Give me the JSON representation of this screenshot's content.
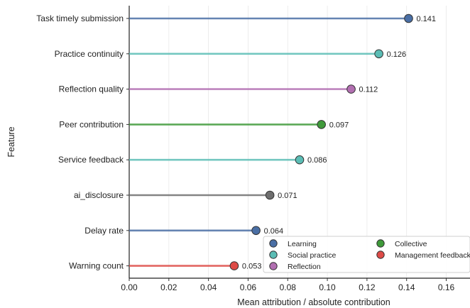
{
  "chart_data": {
    "type": "lollipop",
    "xlabel": "Mean attribution / absolute contribution",
    "ylabel": "Feature",
    "xlim": [
      0.0,
      0.172
    ],
    "xticks": [
      "0.00",
      "0.02",
      "0.04",
      "0.06",
      "0.08",
      "0.10",
      "0.12",
      "0.14",
      "0.16"
    ],
    "grid": "vertical",
    "legend_position": "bottom-right",
    "legend": [
      {
        "name": "Learning",
        "color": "#4a6fa5"
      },
      {
        "name": "Collective",
        "color": "#3f9a3a"
      },
      {
        "name": "Social practice",
        "color": "#5bbdb5"
      },
      {
        "name": "Management feedback",
        "color": "#de4b47"
      },
      {
        "name": "Reflection",
        "color": "#b26fb1"
      }
    ],
    "features": [
      {
        "label": "Task timely submission",
        "value": 0.141,
        "value_label": "0.141",
        "color": "#4a6fa5"
      },
      {
        "label": "Practice continuity",
        "value": 0.126,
        "value_label": "0.126",
        "color": "#5bbdb5"
      },
      {
        "label": "Reflection quality",
        "value": 0.112,
        "value_label": "0.112",
        "color": "#b26fb1"
      },
      {
        "label": "Peer contribution",
        "value": 0.097,
        "value_label": "0.097",
        "color": "#3f9a3a"
      },
      {
        "label": "Service feedback",
        "value": 0.086,
        "value_label": "0.086",
        "color": "#5bbdb5"
      },
      {
        "label": "ai_disclosure",
        "value": 0.071,
        "value_label": "0.071",
        "color": "#6e6e6e"
      },
      {
        "label": "Delay rate",
        "value": 0.064,
        "value_label": "0.064",
        "color": "#4a6fa5"
      },
      {
        "label": "Warning count",
        "value": 0.053,
        "value_label": "0.053",
        "color": "#de4b47"
      }
    ]
  }
}
